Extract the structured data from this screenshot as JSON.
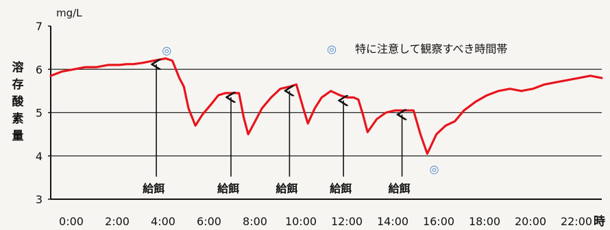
{
  "chart_data": {
    "type": "line",
    "y_unit": "mg/L",
    "ylabel": "溶存酸素量",
    "xlabel": "時",
    "ylim": [
      3,
      7
    ],
    "yticks": [
      3,
      4,
      5,
      6,
      7
    ],
    "xlim": [
      0,
      24
    ],
    "xtick_values": [
      0,
      2,
      4,
      6,
      8,
      10,
      12,
      14,
      16,
      18,
      20,
      22
    ],
    "xtick_labels": [
      "0:00",
      "2:00",
      "4:00",
      "6:00",
      "8:00",
      "10:00",
      "12:00",
      "14:00",
      "16:00",
      "18:00",
      "20:00",
      "22:00"
    ],
    "grid": {
      "y_lines": [
        4,
        5,
        6
      ]
    },
    "series": [
      {
        "color": "#e8141b",
        "x": [
          0,
          0.5,
          1,
          1.5,
          2,
          2.5,
          3,
          3.3,
          3.6,
          4,
          4.5,
          5,
          5.3,
          5.6,
          5.8,
          6,
          6.3,
          6.6,
          7,
          7.3,
          7.6,
          8,
          8.2,
          8.4,
          8.6,
          8.9,
          9.2,
          9.6,
          10,
          10.4,
          10.7,
          11,
          11.2,
          11.5,
          11.8,
          12.2,
          12.6,
          12.9,
          13.2,
          13.4,
          13.6,
          13.8,
          14.2,
          14.6,
          15,
          15.4,
          15.8,
          16.1,
          16.4,
          16.8,
          17.2,
          17.6,
          18,
          18.5,
          19,
          19.5,
          20,
          20.5,
          21,
          21.5,
          22,
          22.5,
          23,
          23.5,
          24
        ],
        "y": [
          5.85,
          5.95,
          6.0,
          6.05,
          6.05,
          6.1,
          6.1,
          6.12,
          6.12,
          6.15,
          6.2,
          6.25,
          6.2,
          5.8,
          5.6,
          5.1,
          4.7,
          4.95,
          5.2,
          5.4,
          5.45,
          5.45,
          5.45,
          4.9,
          4.5,
          4.8,
          5.1,
          5.35,
          5.55,
          5.6,
          5.65,
          5.1,
          4.75,
          5.1,
          5.35,
          5.5,
          5.4,
          5.35,
          5.35,
          5.3,
          4.95,
          4.55,
          4.85,
          5.0,
          5.05,
          5.05,
          5.05,
          4.5,
          4.05,
          4.5,
          4.7,
          4.8,
          5.05,
          5.25,
          5.4,
          5.5,
          5.55,
          5.5,
          5.55,
          5.65,
          5.7,
          5.75,
          5.8,
          5.85,
          5.8
        ]
      }
    ],
    "feeding_times": [
      4.6,
      7.85,
      10.4,
      12.75,
      15.3
    ],
    "feeding_label": "給餌",
    "marker_symbol": "◎",
    "markers": [
      {
        "x": 5.05,
        "y": 6.45
      },
      {
        "x": 16.7,
        "y": 3.7
      }
    ],
    "legend": {
      "symbol": "◎",
      "text": "特に注意して観察すべき時間帯",
      "position": "top-right"
    }
  }
}
